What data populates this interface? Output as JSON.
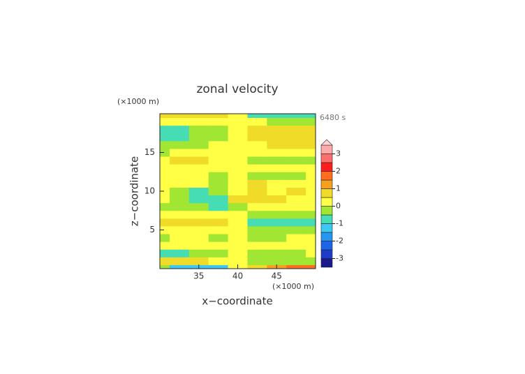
{
  "chart_data": {
    "type": "contour",
    "title": "zonal velocity",
    "xlabel": "x−coordinate",
    "ylabel": "z−coordinate",
    "x_unit": "(×1000 m)",
    "y_unit": "(×1000 m)",
    "time_label": "6480 s",
    "xlim": [
      30,
      50
    ],
    "ylim": [
      0,
      20
    ],
    "xticks": [
      35,
      40,
      45
    ],
    "yticks": [
      5,
      10,
      15
    ],
    "x": [
      30,
      32.5,
      35,
      37.5,
      40,
      42.5,
      45,
      47.5,
      50
    ],
    "y": [
      0,
      1,
      2,
      3,
      4,
      5,
      6,
      7,
      8,
      9,
      10,
      11,
      12,
      13,
      14,
      15,
      16,
      17,
      18,
      19,
      20
    ],
    "z": [
      [
        -0.5,
        -1.5,
        -1.5,
        -1.5,
        0,
        0.5,
        1.0,
        1.5,
        1.5
      ],
      [
        0.7,
        0.8,
        0.6,
        0.3,
        0,
        -0.3,
        -0.2,
        -0.4,
        -0.3
      ],
      [
        -0.7,
        -0.6,
        -0.3,
        -0.2,
        0,
        -0.3,
        -0.2,
        -0.1,
        0
      ],
      [
        0.2,
        0.3,
        0.3,
        0.2,
        0.2,
        0.2,
        0.3,
        0.3,
        0.2
      ],
      [
        -0.2,
        0.2,
        0.1,
        -0.3,
        0,
        -0.2,
        -0.1,
        0.2,
        0.1
      ],
      [
        0.3,
        0.3,
        0.4,
        0.4,
        0.2,
        -0.2,
        -0.1,
        -0.3,
        -0.2
      ],
      [
        0.6,
        0.8,
        0.8,
        0.7,
        0.2,
        -0.7,
        -0.7,
        -0.8,
        -0.6
      ],
      [
        0.2,
        0.3,
        0.2,
        0.1,
        0.1,
        -0.3,
        -0.2,
        -0.3,
        -0.1
      ],
      [
        -0.2,
        -0.1,
        -0.2,
        -0.6,
        -0.2,
        0.3,
        0.2,
        0.3,
        0.2
      ],
      [
        0.1,
        -0.2,
        -0.6,
        -0.8,
        0.5,
        0.9,
        0.6,
        0.3,
        0.2
      ],
      [
        0.2,
        -0.4,
        -0.7,
        -0.5,
        0.3,
        0.6,
        0.3,
        0.6,
        0.4
      ],
      [
        0.3,
        0.2,
        0.3,
        -0.2,
        0.2,
        0.5,
        0.2,
        0.3,
        0.2
      ],
      [
        0.2,
        0.3,
        0.2,
        -0.4,
        0.1,
        -0.3,
        -0.2,
        -0.1,
        0.2
      ],
      [
        0.3,
        0.2,
        0.1,
        0.1,
        0.2,
        0.3,
        0.2,
        0.1,
        0.2
      ],
      [
        0.3,
        0.7,
        0.6,
        0.3,
        0.2,
        -0.2,
        -0.3,
        -0.2,
        -0.1
      ],
      [
        -0.4,
        0.2,
        0.3,
        0.2,
        0.1,
        0.2,
        0.3,
        0.4,
        0.3
      ],
      [
        -0.2,
        -0.2,
        -0.1,
        0.2,
        0.1,
        0.3,
        0.6,
        0.7,
        0.6
      ],
      [
        -0.8,
        -0.7,
        -0.3,
        -0.1,
        0.2,
        0.5,
        0.8,
        0.9,
        0.8
      ],
      [
        -0.7,
        -0.8,
        -0.3,
        -0.2,
        0.2,
        0.6,
        0.7,
        0.9,
        0.7
      ],
      [
        0.2,
        0.1,
        0.2,
        0.2,
        0.1,
        0.1,
        -0.1,
        -0.2,
        -0.1
      ],
      [
        0.8,
        0.8,
        0.8,
        0.7,
        0.2,
        -0.6,
        -0.8,
        -0.7,
        -0.7
      ]
    ],
    "levels": [
      -3.5,
      -3,
      -2.5,
      -2,
      -1.5,
      -1,
      -0.5,
      0,
      0.5,
      1,
      1.5,
      2,
      2.5,
      3,
      3.5
    ],
    "colors": [
      "#1a1a8c",
      "#1e3cc8",
      "#1e64e6",
      "#2896f0",
      "#3cc8f0",
      "#46dcb4",
      "#a0e632",
      "#ffff46",
      "#f0dc28",
      "#f5a01e",
      "#ff6e1e",
      "#ff1e1e",
      "#ff6e6e",
      "#ffaaaa"
    ],
    "extend_color": "#ffd2d2",
    "cbticks": [
      -3,
      -2,
      -1,
      0,
      1,
      2,
      3
    ]
  }
}
